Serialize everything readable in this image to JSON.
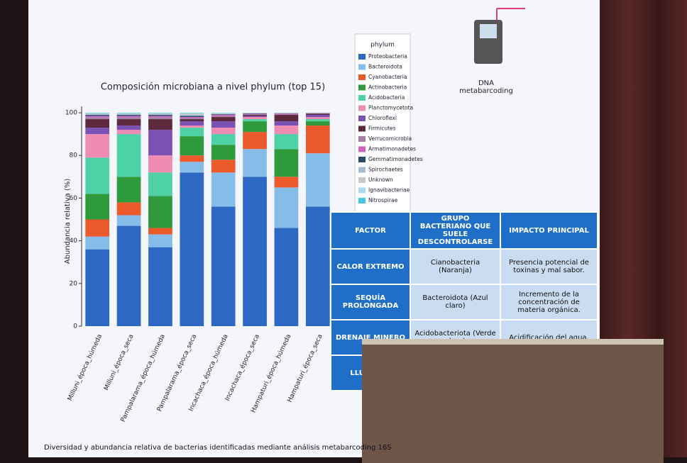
{
  "chart_data": {
    "type": "stacked_bar",
    "title": "Composición microbiana a nivel phylum (top 15)",
    "y_label": "Abundancia relativa (%)",
    "categories": [
      "Milluni_época_húmeda",
      "Milluni_época_seca",
      "Pampalarama_época_húmeda",
      "Pampalarama_época_seca",
      "Incachaca_época_húmeda",
      "Incachaca_época_seca",
      "Hampaturi_época_húmeda",
      "Hampaturi_época_seca"
    ],
    "ylim": [
      0,
      103
    ],
    "yticks": [
      0,
      20,
      40,
      60,
      80,
      100
    ],
    "legend_title": "phylum",
    "legend": "right",
    "series": [
      {
        "name": "Proteobacteria",
        "color": "#2c68c4",
        "values": [
          36,
          47,
          37,
          72,
          56,
          70,
          46,
          56
        ]
      },
      {
        "name": "Bacteroidota",
        "color": "#86bce8",
        "values": [
          6,
          5,
          6,
          5,
          16,
          13,
          19,
          25
        ]
      },
      {
        "name": "Cyanobacteria",
        "color": "#ec5a2c",
        "values": [
          8,
          6,
          3,
          3,
          6,
          8,
          5,
          13
        ]
      },
      {
        "name": "Actinobacteria",
        "color": "#2f9a3c",
        "values": [
          12,
          12,
          15,
          9,
          7,
          5,
          13,
          2
        ]
      },
      {
        "name": "Acidobacteria",
        "color": "#4fd1a6",
        "values": [
          17,
          20,
          11,
          4,
          5,
          1,
          7,
          1
        ]
      },
      {
        "name": "Planctomycetota",
        "color": "#f08bb2",
        "values": [
          11,
          2,
          8,
          1,
          3,
          1,
          4,
          1
        ]
      },
      {
        "name": "Chloroflexi",
        "color": "#7b52b4",
        "values": [
          3,
          2,
          12,
          2,
          3,
          0.5,
          2,
          1
        ]
      },
      {
        "name": "Firmicutes",
        "color": "#5c2a3c",
        "values": [
          4,
          3,
          5,
          1,
          2,
          0.5,
          3,
          0.5
        ]
      },
      {
        "name": "Verrucomicrobia",
        "color": "#a57fa5",
        "values": [
          1,
          1,
          1,
          0.5,
          0.5,
          0.3,
          0.5,
          0.2
        ]
      },
      {
        "name": "Armatimonadetes",
        "color": "#d062c4",
        "values": [
          0.5,
          0.5,
          0.5,
          0.5,
          0.5,
          0.2,
          0.2,
          0.1
        ]
      },
      {
        "name": "Gemmatimonadetes",
        "color": "#2c4a6c",
        "values": [
          0.5,
          0.5,
          0.5,
          0.5,
          0.3,
          0.2,
          0.1,
          0.1
        ]
      },
      {
        "name": "Spirochaetes",
        "color": "#a3bbd3",
        "values": [
          0.3,
          0.3,
          0.3,
          0.5,
          0.2,
          0.1,
          0.1,
          0.05
        ]
      },
      {
        "name": "Unknown",
        "color": "#c8c8c8",
        "values": [
          0.2,
          0.2,
          0.2,
          0.5,
          0.2,
          0.1,
          0.05,
          0.02
        ]
      },
      {
        "name": "Ignavibacteriae",
        "color": "#aad9f2",
        "values": [
          0.3,
          0.3,
          0.3,
          0.3,
          0.2,
          0.05,
          0.03,
          0.02
        ]
      },
      {
        "name": "Nitrospirae",
        "color": "#42c9e2",
        "values": [
          0.2,
          0.2,
          0.2,
          0.2,
          0.1,
          0.05,
          0.02,
          0.01
        ]
      }
    ]
  },
  "icon_label": "DNA metabarcoding",
  "caption": "Diversidad y abundancia relativa de bacterias identificadas mediante análisis metabarcoding 16S",
  "table": {
    "header": [
      "FACTOR",
      "GRUPO BACTERIANO QUE SUELE DESCONTROLARSE",
      "IMPACTO PRINCIPAL"
    ],
    "rows": [
      [
        "CALOR EXTREMO",
        "Cianobacteria (Naranja)",
        "Presencia potencial de toxinas y mal sabor."
      ],
      [
        "SEQUÍA PROLONGADA",
        "Bacteroidota (Azul claro)",
        "Incremento de la concentración de materia orgánica."
      ],
      [
        "DRENAJE MINERO",
        "Acidobacteriota (Verde claro)",
        "Acidificación del agua."
      ],
      [
        "LLUVIAS T"
      ]
    ]
  }
}
